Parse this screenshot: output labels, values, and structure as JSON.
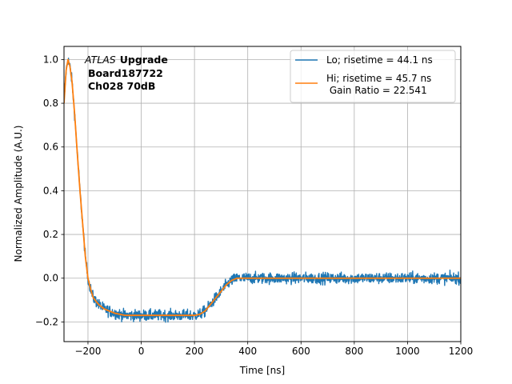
{
  "chart_data": {
    "type": "line",
    "xlabel": "Time [ns]",
    "ylabel": "Normalized Amplitude (A.U.)",
    "xlim": [
      -290,
      1200
    ],
    "ylim": [
      -0.29,
      1.06
    ],
    "xticks": [
      -200,
      0,
      200,
      400,
      600,
      800,
      1000,
      1200
    ],
    "xtick_labels": [
      "−200",
      "0",
      "200",
      "400",
      "600",
      "800",
      "1000",
      "1200"
    ],
    "yticks": [
      -0.2,
      0.0,
      0.2,
      0.4,
      0.6,
      0.8,
      1.0
    ],
    "ytick_labels": [
      "−0.2",
      "0.0",
      "0.2",
      "0.4",
      "0.6",
      "0.8",
      "1.0"
    ],
    "grid": true,
    "legend_position": "top-right",
    "annotation": {
      "italic": "ATLAS",
      "bold": "Upgrade",
      "line2": "Board187722",
      "line3": "Ch028 70dB"
    },
    "series": [
      {
        "name": "Lo; risetime = 44.1 ns",
        "color": "#1f77b4",
        "noise": 0.025,
        "x": [
          -290,
          -282,
          -275,
          -268,
          -260,
          -250,
          -240,
          -230,
          -220,
          -210,
          -200,
          -190,
          -180,
          -160,
          -140,
          -120,
          -100,
          -80,
          -60,
          -40,
          -20,
          0,
          50,
          100,
          150,
          200,
          220,
          240,
          260,
          280,
          300,
          320,
          340,
          360,
          380,
          400,
          450,
          500,
          600,
          700,
          800,
          900,
          1000,
          1100,
          1200
        ],
        "y": [
          0.8,
          0.95,
          1.0,
          0.97,
          0.9,
          0.75,
          0.57,
          0.4,
          0.25,
          0.1,
          0.0,
          -0.05,
          -0.09,
          -0.12,
          -0.14,
          -0.15,
          -0.16,
          -0.165,
          -0.17,
          -0.17,
          -0.17,
          -0.17,
          -0.17,
          -0.17,
          -0.17,
          -0.17,
          -0.165,
          -0.15,
          -0.12,
          -0.09,
          -0.06,
          -0.03,
          -0.01,
          0.0,
          0.0,
          0.0,
          0.0,
          0.0,
          0.0,
          0.0,
          0.0,
          0.0,
          0.0,
          0.0,
          0.0
        ]
      },
      {
        "name": "Hi; risetime = 45.7 ns\n Gain Ratio = 22.541",
        "color": "#ff7f0e",
        "noise": 0.0,
        "x": [
          -290,
          -282,
          -275,
          -268,
          -260,
          -250,
          -240,
          -230,
          -220,
          -210,
          -200,
          -190,
          -180,
          -160,
          -140,
          -120,
          -100,
          -80,
          -60,
          -40,
          -20,
          0,
          50,
          100,
          150,
          200,
          220,
          240,
          260,
          280,
          300,
          320,
          340,
          360,
          380,
          400,
          450,
          500,
          600,
          700,
          800,
          900,
          1000,
          1100,
          1200
        ],
        "y": [
          0.8,
          0.95,
          1.0,
          0.97,
          0.9,
          0.75,
          0.57,
          0.4,
          0.25,
          0.1,
          0.0,
          -0.05,
          -0.09,
          -0.12,
          -0.14,
          -0.15,
          -0.16,
          -0.165,
          -0.17,
          -0.17,
          -0.17,
          -0.17,
          -0.17,
          -0.17,
          -0.17,
          -0.17,
          -0.165,
          -0.15,
          -0.12,
          -0.09,
          -0.06,
          -0.03,
          -0.01,
          0.0,
          0.0,
          0.0,
          0.0,
          0.0,
          0.0,
          0.0,
          0.0,
          0.0,
          0.0,
          0.0,
          0.0
        ]
      }
    ]
  }
}
